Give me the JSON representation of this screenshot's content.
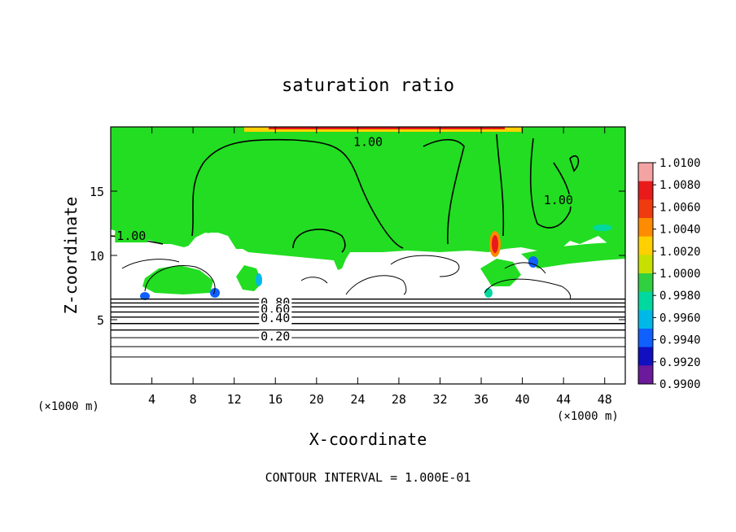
{
  "chart_data": {
    "type": "heatmap",
    "title": "saturation ratio",
    "xlabel": "X-coordinate",
    "ylabel": "Z-coordinate",
    "x_unit_label": "(×1000 m)",
    "y_unit_label": "(×1000 m)",
    "xlim": [
      0,
      50
    ],
    "ylim": [
      0,
      20
    ],
    "x_ticks": [
      "4",
      "8",
      "12",
      "16",
      "20",
      "24",
      "28",
      "32",
      "36",
      "40",
      "44",
      "48"
    ],
    "x_tick_values": [
      4,
      8,
      12,
      16,
      20,
      24,
      28,
      32,
      36,
      40,
      44,
      48
    ],
    "y_ticks": [
      "5",
      "10",
      "15"
    ],
    "y_tick_values": [
      5,
      10,
      15
    ],
    "footer": "CONTOUR INTERVAL = 1.000E-01",
    "colorbar": {
      "labels": [
        "1.0100",
        "1.0080",
        "1.0060",
        "1.0040",
        "1.0020",
        "1.0000",
        "0.9980",
        "0.9960",
        "0.9940",
        "0.9920",
        "0.9900"
      ],
      "colors": [
        "#f4a3a3",
        "#e81a1a",
        "#f03a10",
        "#ff8c00",
        "#ffd000",
        "#c8e000",
        "#30d040",
        "#00d8a0",
        "#00b8e8",
        "#1060ff",
        "#1010c0",
        "#6a1a9a"
      ]
    },
    "contour_labels": [
      {
        "text": "1.00",
        "x": 25.0,
        "z": 18.5
      },
      {
        "text": "1.00",
        "x": 43.5,
        "z": 14.0
      },
      {
        "text": "1.00",
        "x": 2.0,
        "z": 11.2
      },
      {
        "text": "0.80",
        "x": 16.0,
        "z": 6.0
      },
      {
        "text": "0.60",
        "x": 16.0,
        "z": 5.5
      },
      {
        "text": "0.40",
        "x": 16.0,
        "z": 4.8
      },
      {
        "text": "0.20",
        "x": 16.0,
        "z": 3.4
      }
    ],
    "horizontal_contours_z": [
      2.1,
      2.9,
      3.6,
      4.2,
      4.7,
      5.2,
      5.6,
      6.0,
      6.3,
      6.6
    ]
  }
}
